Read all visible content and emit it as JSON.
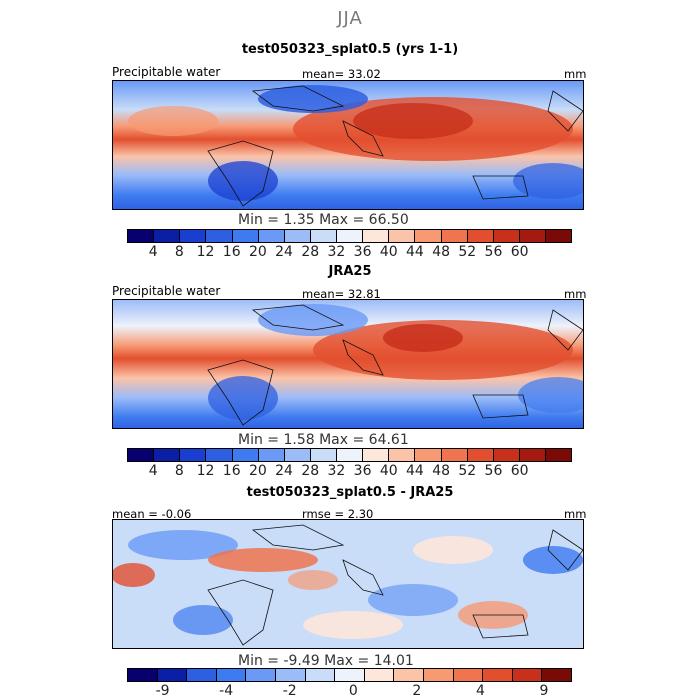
{
  "season": "JJA",
  "panels": [
    {
      "title": "test050323_splat0.5 (yrs 1-1)",
      "label": "Precipitable water",
      "mean_text": "mean=  33.02",
      "unit": "mm",
      "minmax": "Min =   1.35 Max =  66.50"
    },
    {
      "title": "JRA25",
      "label": "Precipitable water",
      "mean_text": "mean=  32.81",
      "unit": "mm",
      "minmax": "Min =   1.58 Max =  64.61"
    },
    {
      "title": "test050323_splat0.5 - JRA25",
      "mean_text": "mean =  -0.06",
      "rmse_text": "rmse =    2.30",
      "unit": "mm",
      "minmax": "Min =  -9.49 Max =  14.01"
    }
  ],
  "colorbar_full": {
    "colors": [
      "#08006e",
      "#0a1fa6",
      "#1a3fd0",
      "#2e5fe0",
      "#3f7bf0",
      "#6a9af6",
      "#9cbcf8",
      "#c9dcf8",
      "#eef2fb",
      "#fde6da",
      "#fbc3a8",
      "#f79a74",
      "#f07450",
      "#e24f2e",
      "#c8301c",
      "#a41a10",
      "#7a0a06"
    ],
    "ticks": [
      "4",
      "8",
      "12",
      "16",
      "20",
      "24",
      "28",
      "32",
      "36",
      "40",
      "44",
      "48",
      "52",
      "56",
      "60"
    ]
  },
  "colorbar_diff": {
    "colors": [
      "#08006e",
      "#0a1fa6",
      "#2e5fe0",
      "#3f7bf0",
      "#6a9af6",
      "#9cbcf8",
      "#c9dcf8",
      "#eef2fb",
      "#fde6da",
      "#fbc3a8",
      "#f79a74",
      "#f07450",
      "#e24f2e",
      "#c8301c",
      "#7a0a06"
    ],
    "ticks": [
      "-9",
      "-4",
      "-2",
      "0",
      "2",
      "4",
      "9"
    ]
  }
}
